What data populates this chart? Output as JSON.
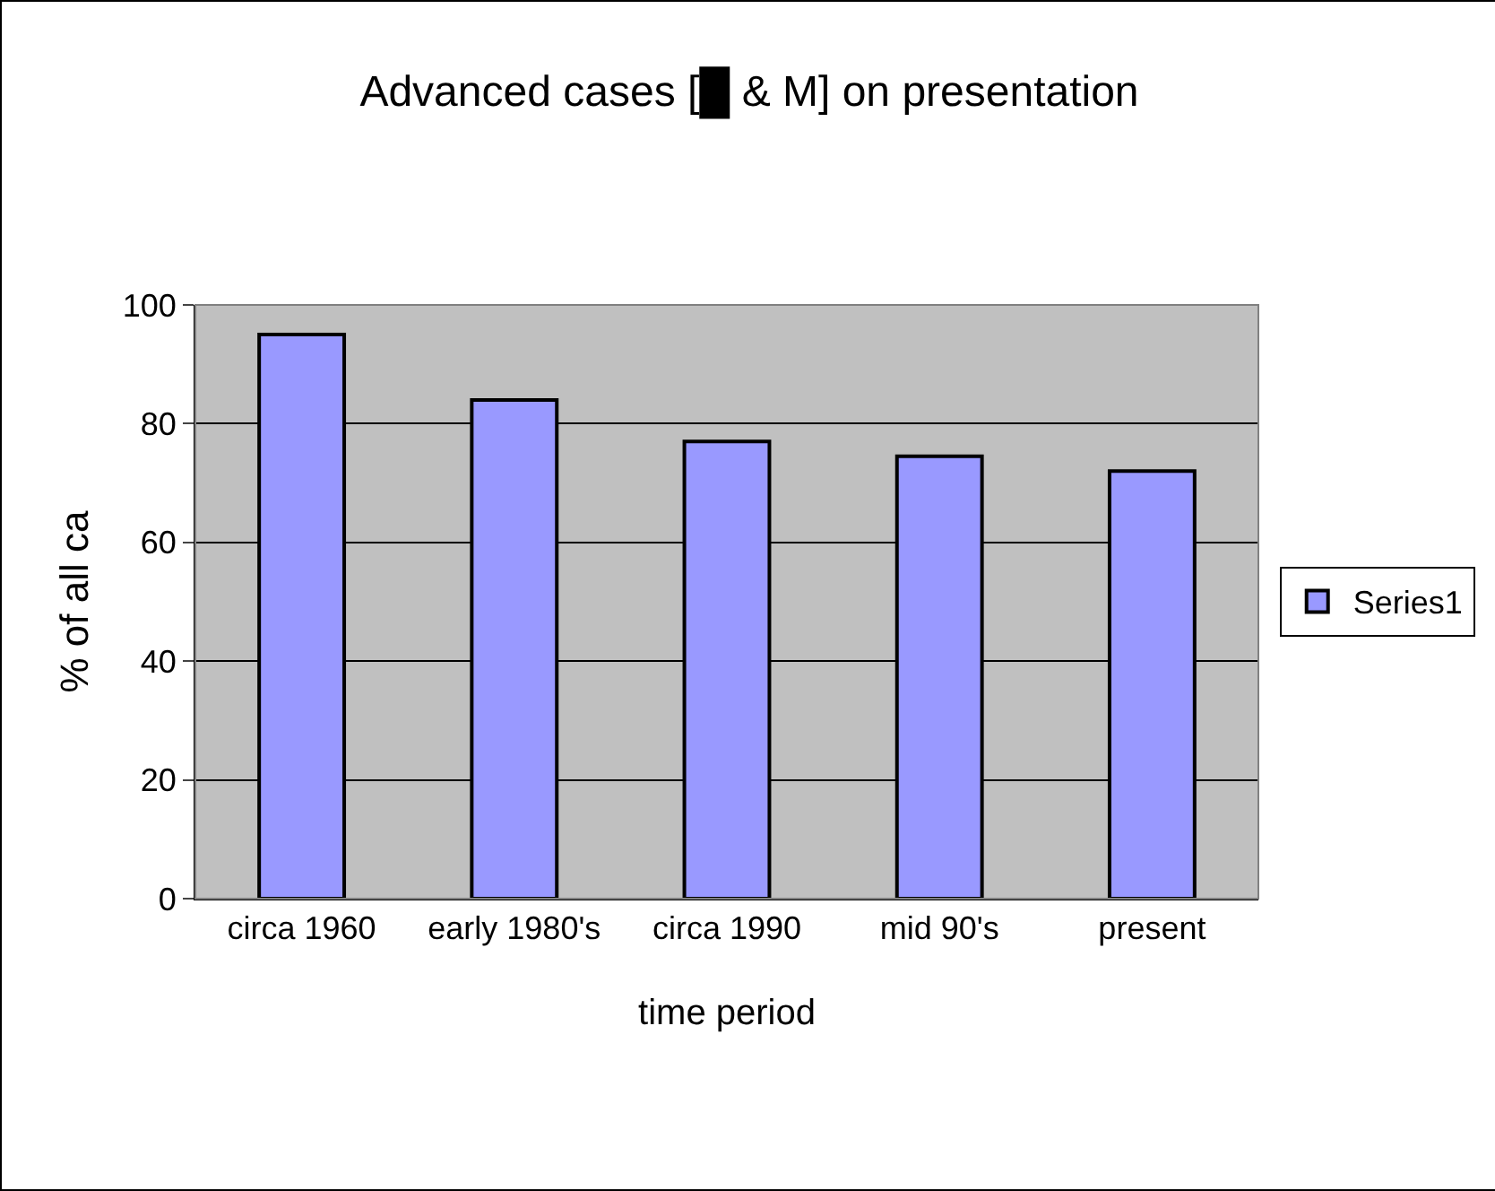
{
  "chart_data": {
    "type": "bar",
    "title": "Advanced cases [█ & M] on presentation",
    "xlabel": "time period",
    "ylabel": "% of all ca",
    "categories": [
      "circa 1960",
      "early 1980's",
      "circa 1990",
      "mid 90's",
      "present"
    ],
    "series": [
      {
        "name": "Series1",
        "color": "#9999ff",
        "values": [
          95,
          84,
          77,
          74.5,
          72
        ]
      }
    ],
    "ylim": [
      0,
      100
    ],
    "yticks": [
      0,
      20,
      40,
      60,
      80,
      100
    ],
    "grid": "y",
    "legend": "right"
  }
}
